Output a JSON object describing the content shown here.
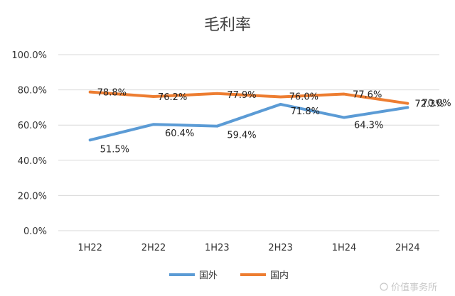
{
  "chart_data": {
    "type": "line",
    "title": "毛利率",
    "categories": [
      "1H22",
      "2H22",
      "1H23",
      "2H23",
      "1H24",
      "2H24"
    ],
    "ylim": [
      0,
      100
    ],
    "yticks": [
      "0.0%",
      "20.0%",
      "40.0%",
      "60.0%",
      "80.0%",
      "100.0%"
    ],
    "ytick_values": [
      0,
      20,
      40,
      60,
      80,
      100
    ],
    "grid": true,
    "legend_position": "bottom",
    "series": [
      {
        "name": "国外",
        "color": "#5b9bd5",
        "values": [
          51.5,
          60.4,
          59.4,
          71.8,
          64.3,
          70.0
        ],
        "labels": [
          "51.5%",
          "60.4%",
          "59.4%",
          "71.8%",
          "64.3%",
          "70.0%"
        ]
      },
      {
        "name": "国内",
        "color": "#ed7d31",
        "values": [
          78.8,
          76.2,
          77.9,
          76.0,
          77.6,
          72.3
        ],
        "labels": [
          "78.8%",
          "76.2%",
          "77.9%",
          "76.0%",
          "77.6%",
          "72.3%"
        ]
      }
    ]
  },
  "watermark": {
    "text": "价值事务所"
  }
}
